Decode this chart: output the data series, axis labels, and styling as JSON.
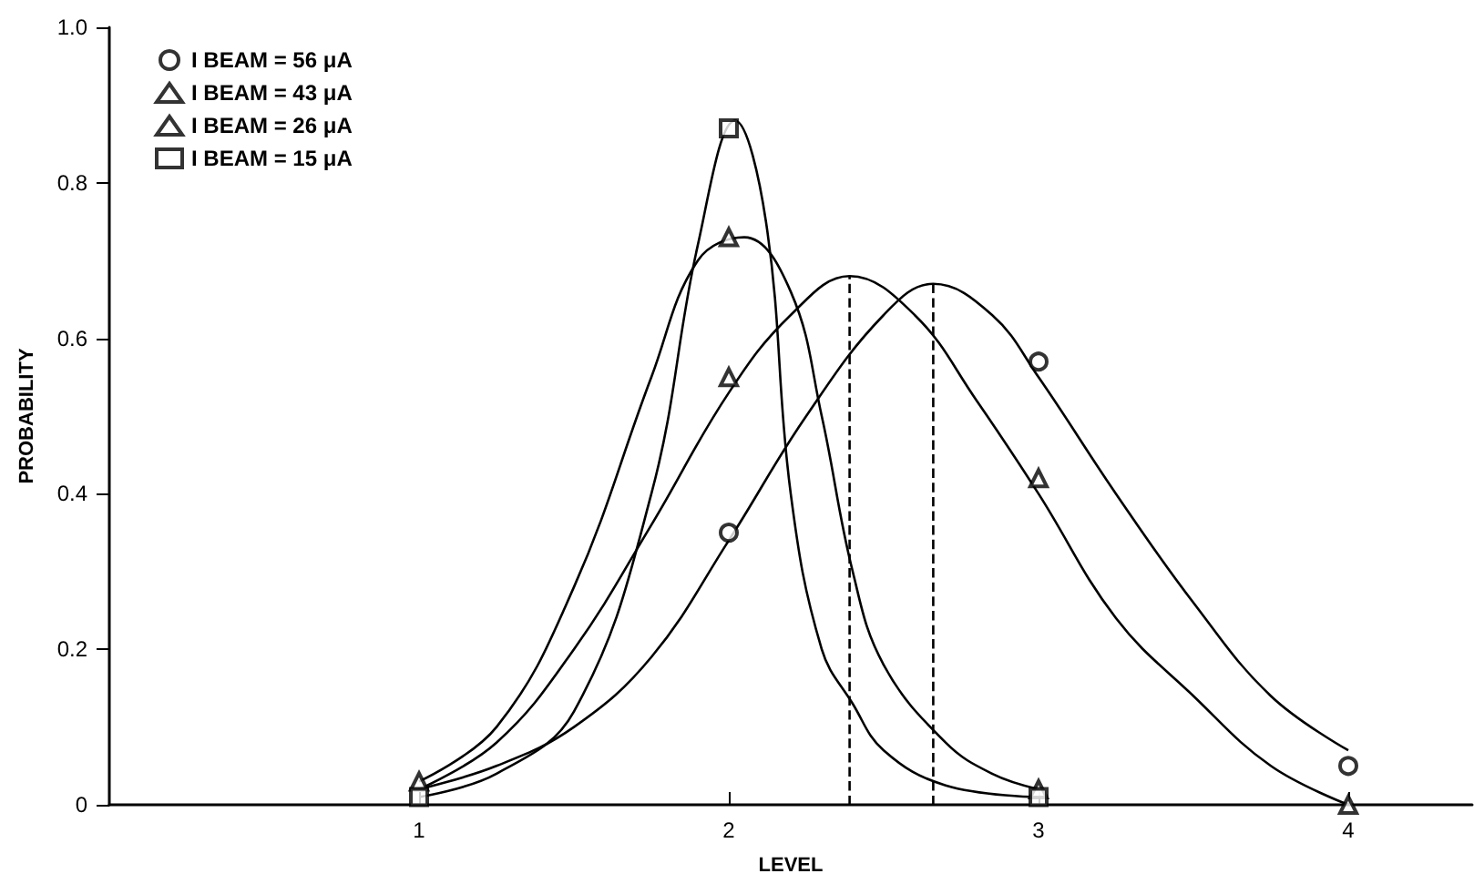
{
  "chart_data": {
    "type": "scatter",
    "xlabel": "LEVEL",
    "ylabel": "PROBABILITY",
    "xlim": [
      0,
      4.4
    ],
    "xticks": [
      1,
      2,
      3,
      4
    ],
    "ylim": [
      0,
      1
    ],
    "yticks": [
      0,
      0.2,
      0.4,
      0.6,
      0.8,
      {
        "value": 1,
        "label": "1.0"
      }
    ],
    "grid": false,
    "legend": "top left",
    "series": [
      {
        "name": "I BEAM = 56 μA",
        "color": "#000000",
        "marker": "circle",
        "x": [
          2,
          3,
          4
        ],
        "values": [
          0.35,
          0.57,
          0.05
        ]
      },
      {
        "name": "I BEAM = 43 μA",
        "color": "#000000",
        "marker": "triangle",
        "x": [
          2,
          3,
          4
        ],
        "values": [
          0.55,
          0.42,
          0
        ]
      },
      {
        "name": "I BEAM = 26 μA",
        "color": "#000000",
        "marker": "triangle",
        "x": [
          1,
          2,
          3
        ],
        "values": [
          0.03,
          0.73,
          0.02
        ]
      },
      {
        "name": "I BEAM = 15 μA",
        "color": "#000000",
        "marker": "square",
        "x": [
          1,
          2,
          3
        ],
        "values": [
          0.01,
          0.87,
          0.01
        ]
      },
      {
        "type": "line",
        "color": "#000000",
        "marker": "none",
        "x": [
          1,
          1.25,
          1.5,
          1.75,
          2,
          2.25,
          2.5,
          2.66,
          2.85,
          3,
          3.25,
          3.5,
          3.75,
          4
        ],
        "values": [
          0.02,
          0.05,
          0.1,
          0.19,
          0.34,
          0.5,
          0.63,
          0.67,
          0.63,
          0.55,
          0.4,
          0.26,
          0.14,
          0.07
        ]
      },
      {
        "type": "line",
        "color": "#000000",
        "marker": "none",
        "x": [
          1,
          1.25,
          1.5,
          1.75,
          2,
          2.2,
          2.39,
          2.6,
          2.8,
          3,
          3.25,
          3.5,
          3.75,
          4
        ],
        "values": [
          0.02,
          0.08,
          0.2,
          0.36,
          0.53,
          0.63,
          0.68,
          0.63,
          0.52,
          0.4,
          0.24,
          0.14,
          0.05,
          0
        ]
      },
      {
        "type": "line",
        "color": "#000000",
        "marker": "none",
        "x": [
          1,
          1.25,
          1.5,
          1.75,
          1.9,
          2.05,
          2.2,
          2.3,
          2.4,
          2.5,
          2.7,
          2.85,
          3
        ],
        "values": [
          0.03,
          0.1,
          0.28,
          0.55,
          0.7,
          0.73,
          0.66,
          0.5,
          0.3,
          0.18,
          0.08,
          0.04,
          0.02
        ]
      },
      {
        "type": "line",
        "color": "#000000",
        "marker": "none",
        "x": [
          1,
          1.25,
          1.5,
          1.75,
          1.9,
          2.02,
          2.12,
          2.2,
          2.3,
          2.4,
          2.5,
          2.7,
          3
        ],
        "values": [
          0.01,
          0.04,
          0.12,
          0.4,
          0.72,
          0.88,
          0.75,
          0.4,
          0.2,
          0.13,
          0.07,
          0.025,
          0.01
        ]
      },
      {
        "type": "line",
        "color": "#000000",
        "marker": "none",
        "line_style": "dashed",
        "x": [
          2.39,
          2.39
        ],
        "values": [
          0,
          0.68
        ]
      },
      {
        "type": "line",
        "color": "#000000",
        "marker": "none",
        "line_style": "dashed",
        "x": [
          2.66,
          2.66
        ],
        "values": [
          0,
          0.67
        ]
      }
    ]
  }
}
